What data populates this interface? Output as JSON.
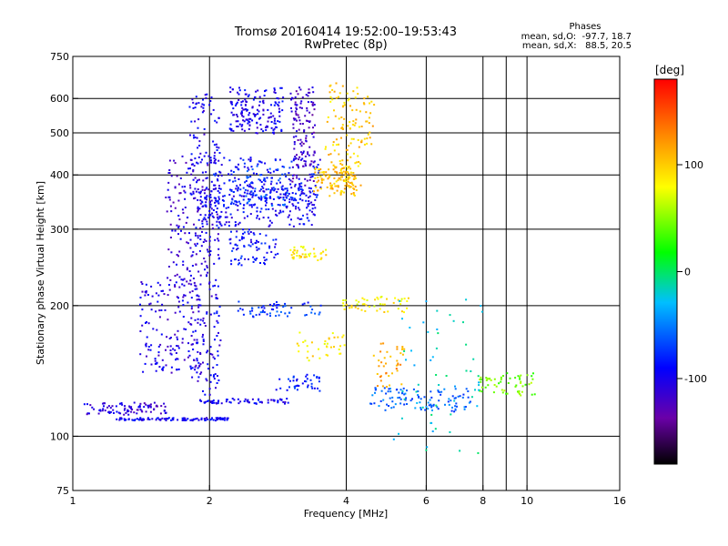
{
  "chart_data": {
    "type": "scatter",
    "title": "Tromsø 20160414 19:52:00–19:53:43",
    "subtitle": "RwPretec (8p)",
    "xlabel": "Frequency [MHz]",
    "ylabel": "Stationary phase Virtual Height [km]",
    "xscale": "log",
    "yscale": "log",
    "xlim": [
      1,
      16
    ],
    "ylim": [
      75,
      750
    ],
    "x_ticks": [
      1,
      2,
      4,
      6,
      8,
      10,
      16
    ],
    "y_ticks": [
      75,
      100,
      200,
      300,
      400,
      500,
      600,
      750
    ],
    "vertical_grid": [
      2,
      4,
      6,
      8,
      9,
      10
    ],
    "horizontal_grid": [
      100,
      200,
      300,
      400,
      500,
      600
    ],
    "grid": true,
    "phases_info": {
      "title": "Phases",
      "line_o": "mean, sd,O:  -97.7, 18.7",
      "line_x": "mean, sd,X:   88.5, 20.5"
    },
    "colorbar": {
      "label": "[deg]",
      "range": [
        -180,
        180
      ],
      "ticks": [
        100,
        0,
        -100
      ],
      "colors": [
        "#000000",
        "#6a00a8",
        "#0000ff",
        "#00bfff",
        "#00ff00",
        "#ffff00",
        "#ff8c00",
        "#ff0000"
      ]
    },
    "series": [
      {
        "f0": 1.05,
        "f1": 1.6,
        "h0": 120,
        "h1": 113,
        "phase": -110,
        "n": 90
      },
      {
        "f0": 1.25,
        "f1": 2.2,
        "h0": 110,
        "h1": 110,
        "phase": -95,
        "n": 110
      },
      {
        "f0": 1.9,
        "f1": 3.0,
        "h0": 120,
        "h1": 122,
        "phase": -100,
        "n": 60
      },
      {
        "f0": 2.8,
        "f1": 3.5,
        "h0": 128,
        "h1": 140,
        "phase": -85,
        "n": 40
      },
      {
        "f0": 1.4,
        "f1": 1.9,
        "h0": 140,
        "h1": 230,
        "phase": -105,
        "n": 170
      },
      {
        "f0": 1.8,
        "f1": 2.1,
        "h0": 120,
        "h1": 620,
        "phase": -100,
        "n": 260
      },
      {
        "f0": 1.6,
        "f1": 2.0,
        "h0": 230,
        "h1": 450,
        "phase": -110,
        "n": 130
      },
      {
        "f0": 1.9,
        "f1": 3.4,
        "h0": 305,
        "h1": 380,
        "phase": -95,
        "n": 220
      },
      {
        "f0": 2.0,
        "f1": 3.5,
        "h0": 340,
        "h1": 440,
        "phase": -90,
        "n": 180
      },
      {
        "f0": 2.2,
        "f1": 2.9,
        "h0": 500,
        "h1": 640,
        "phase": -100,
        "n": 170
      },
      {
        "f0": 3.0,
        "f1": 3.4,
        "h0": 380,
        "h1": 640,
        "phase": -120,
        "n": 130
      },
      {
        "f0": 2.2,
        "f1": 2.8,
        "h0": 250,
        "h1": 300,
        "phase": -90,
        "n": 80
      },
      {
        "f0": 2.4,
        "f1": 3.0,
        "h0": 340,
        "h1": 420,
        "phase": -70,
        "n": 60
      },
      {
        "f0": 2.3,
        "f1": 3.5,
        "h0": 190,
        "h1": 205,
        "phase": -75,
        "n": 60
      },
      {
        "f0": 3.4,
        "f1": 4.2,
        "h0": 360,
        "h1": 420,
        "phase": 105,
        "n": 110
      },
      {
        "f0": 3.6,
        "f1": 4.3,
        "h0": 380,
        "h1": 650,
        "phase": 100,
        "n": 110
      },
      {
        "f0": 3.0,
        "f1": 3.6,
        "h0": 255,
        "h1": 275,
        "phase": 90,
        "n": 45
      },
      {
        "f0": 4.3,
        "f1": 4.6,
        "h0": 470,
        "h1": 620,
        "phase": 105,
        "n": 25
      },
      {
        "f0": 3.9,
        "f1": 5.5,
        "h0": 195,
        "h1": 210,
        "phase": 85,
        "n": 50
      },
      {
        "f0": 3.1,
        "f1": 4.0,
        "h0": 150,
        "h1": 175,
        "phase": 90,
        "n": 35
      },
      {
        "f0": 4.5,
        "f1": 7.5,
        "h0": 115,
        "h1": 130,
        "phase": -60,
        "n": 110
      },
      {
        "f0": 4.6,
        "f1": 5.4,
        "h0": 130,
        "h1": 165,
        "phase": 120,
        "n": 40
      },
      {
        "f0": 7.8,
        "f1": 10.5,
        "h0": 125,
        "h1": 140,
        "phase": 45,
        "n": 60
      },
      {
        "f0": 5.0,
        "f1": 8.0,
        "h0": 90,
        "h1": 210,
        "phase": -20,
        "n": 60
      }
    ]
  }
}
